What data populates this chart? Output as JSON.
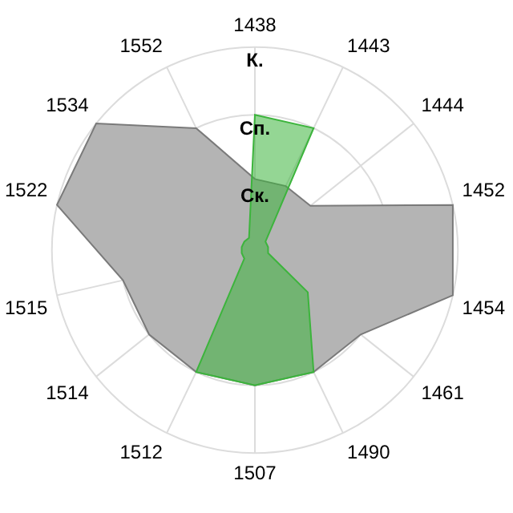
{
  "chart_data": {
    "type": "radar",
    "categories": [
      "1438",
      "1443",
      "1444",
      "1452",
      "1454",
      "1461",
      "1490",
      "1507",
      "1512",
      "1514",
      "1515",
      "1522",
      "1534",
      "1552"
    ],
    "ylim": [
      0,
      3
    ],
    "yticks": [
      {
        "value": 1,
        "label": "Ск."
      },
      {
        "value": 2,
        "label": "Сп."
      },
      {
        "value": 3,
        "label": "К."
      }
    ],
    "grid": true,
    "series": [
      {
        "color": "#b4b4b4",
        "values": [
          1.05,
          1.05,
          1.05,
          3,
          3,
          2,
          2,
          2,
          2,
          2,
          2,
          3,
          3,
          2
        ]
      },
      {
        "color": "#3cb43c",
        "values": [
          2,
          2,
          0.2,
          0.2,
          0.2,
          1,
          2,
          2,
          2,
          0.2,
          0.2,
          0.2,
          0.2,
          0.2
        ]
      }
    ]
  }
}
